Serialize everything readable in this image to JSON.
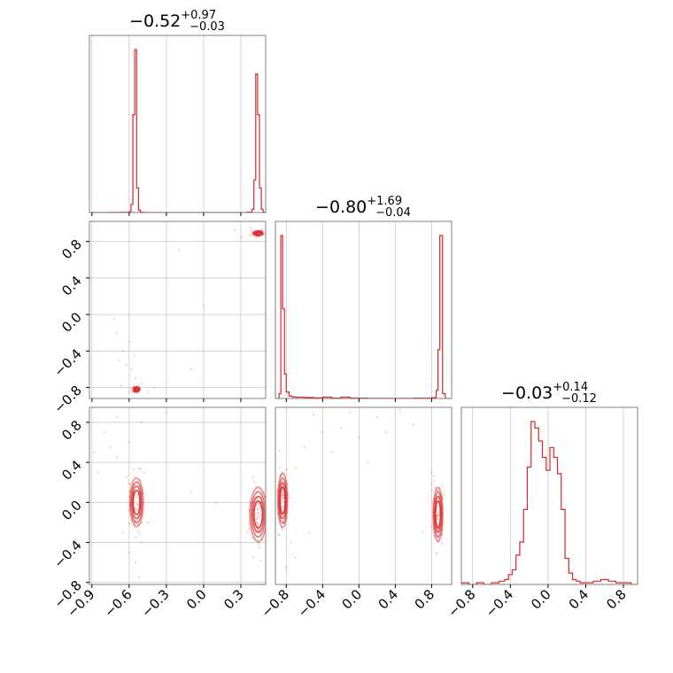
{
  "colors": {
    "accent": "#d62728",
    "frame": "#7f7f7f",
    "grid": "#c8c8c8"
  },
  "chart_data": {
    "type": "corner",
    "grid": true,
    "panels": [
      {
        "id": "hist-0",
        "type": "histogram",
        "title": {
          "median": "−0.52",
          "plus": "+0.97",
          "minus": "−0.03"
        },
        "xlim": [
          -0.92,
          0.5
        ],
        "xticks": [
          "−0.9",
          "−0.6",
          "−0.3",
          "0.0",
          "0.3"
        ],
        "xtick_values": [
          -0.9,
          -0.6,
          -0.3,
          0.0,
          0.3
        ],
        "show_xticklabels": false,
        "bins": {
          "x": [
            -0.92,
            -0.88,
            -0.84,
            -0.8,
            -0.76,
            -0.72,
            -0.68,
            -0.64,
            -0.6,
            -0.585,
            -0.57,
            -0.555,
            -0.54,
            -0.525,
            -0.51,
            -0.49,
            -0.46,
            0.35,
            0.39,
            0.405,
            0.42,
            0.435,
            0.45,
            0.465,
            0.48,
            0.5
          ],
          "y": [
            0.02,
            0.02,
            0.03,
            0.03,
            0.05,
            0.08,
            0.12,
            0.18,
            0.5,
            5,
            60,
            100,
            15,
            1.5,
            0.3,
            0.05,
            0,
            0.2,
            2,
            20,
            85,
            60,
            15,
            2,
            0.2
          ]
        }
      },
      {
        "id": "scatter-1-0",
        "type": "scatter",
        "xlim": [
          -0.92,
          0.5
        ],
        "ylim": [
          -0.92,
          1.02
        ],
        "xticks": [
          "−0.9",
          "−0.6",
          "−0.3",
          "0.0",
          "0.3"
        ],
        "xtick_values": [
          -0.9,
          -0.6,
          -0.3,
          0.0,
          0.3
        ],
        "yticks": [
          "−0.8",
          "−0.4",
          "0.0",
          "0.4",
          "0.8"
        ],
        "ytick_values": [
          -0.8,
          -0.4,
          0.0,
          0.4,
          0.8
        ],
        "show_xticklabels": false,
        "clusters": [
          {
            "cx": -0.54,
            "cy": -0.82,
            "rx": 0.02,
            "ry": 0.02,
            "rings": 3
          },
          {
            "cx": 0.44,
            "cy": 0.89,
            "rx": 0.03,
            "ry": 0.02,
            "rings": 3
          }
        ],
        "points": [
          [
            -0.62,
            -0.55
          ],
          [
            -0.65,
            -0.4
          ],
          [
            -0.7,
            -0.2
          ],
          [
            -0.58,
            -0.6
          ],
          [
            -0.55,
            -0.7
          ],
          [
            -0.5,
            -0.75
          ],
          [
            -0.6,
            -0.3
          ],
          [
            -0.72,
            -0.05
          ],
          [
            -0.2,
            0.7
          ],
          [
            0.0,
            0.1
          ],
          [
            -0.1,
            -0.6
          ],
          [
            0.3,
            0.85
          ],
          [
            0.25,
            0.92
          ],
          [
            -0.4,
            -0.8
          ],
          [
            -0.45,
            -0.85
          ],
          [
            -0.66,
            -0.78
          ],
          [
            -0.6,
            -0.85
          ],
          [
            0.38,
            0.95
          ],
          [
            -0.68,
            -0.5
          ],
          [
            -0.56,
            -0.45
          ]
        ]
      },
      {
        "id": "hist-1",
        "type": "histogram",
        "title": {
          "median": "−0.80",
          "plus": "+1.69",
          "minus": "−0.04"
        },
        "xlim": [
          -0.92,
          1.02
        ],
        "xticks": [
          "−0.8",
          "−0.4",
          "0.0",
          "0.4",
          "0.8"
        ],
        "xtick_values": [
          -0.8,
          -0.4,
          0.0,
          0.4,
          0.8
        ],
        "show_xticklabels": false,
        "bins": {
          "x": [
            -0.92,
            -0.88,
            -0.86,
            -0.84,
            -0.82,
            -0.8,
            -0.77,
            -0.74,
            -0.7,
            -0.6,
            -0.5,
            -0.4,
            -0.3,
            -0.2,
            -0.1,
            0.0,
            0.1,
            0.2,
            0.3,
            0.4,
            0.5,
            0.6,
            0.7,
            0.8,
            0.85,
            0.87,
            0.89,
            0.92,
            0.95,
            1.02
          ],
          "y": [
            0,
            3,
            100,
            55,
            15,
            4,
            1.5,
            1,
            0.8,
            0.6,
            0.4,
            0.8,
            0.3,
            0.8,
            0.3,
            0.2,
            0.1,
            0.1,
            0.1,
            0.1,
            0.1,
            0.2,
            0.2,
            0.5,
            5,
            30,
            100,
            3,
            0
          ]
        }
      },
      {
        "id": "scatter-2-0",
        "type": "scatter",
        "xlim": [
          -0.92,
          0.5
        ],
        "ylim": [
          -0.82,
          0.95
        ],
        "xticks": [
          "−0.9",
          "−0.6",
          "−0.3",
          "0.0",
          "0.3"
        ],
        "xtick_values": [
          -0.9,
          -0.6,
          -0.3,
          0.0,
          0.3
        ],
        "yticks": [
          "−0.8",
          "−0.4",
          "0.0",
          "0.4",
          "0.8"
        ],
        "ytick_values": [
          -0.8,
          -0.4,
          0.0,
          0.4,
          0.8
        ],
        "show_xticklabels": true,
        "clusters": [
          {
            "cx": -0.54,
            "cy": 0.0,
            "rx": 0.04,
            "ry": 0.18,
            "rings": 4
          },
          {
            "cx": 0.44,
            "cy": -0.12,
            "rx": 0.05,
            "ry": 0.2,
            "rings": 4
          }
        ],
        "points": [
          [
            -0.8,
            0.7
          ],
          [
            -0.75,
            0.55
          ],
          [
            -0.7,
            0.45
          ],
          [
            -0.85,
            0.3
          ],
          [
            -0.6,
            0.6
          ],
          [
            -0.5,
            0.8
          ],
          [
            -0.65,
            -0.3
          ],
          [
            -0.6,
            -0.5
          ],
          [
            -0.55,
            -0.6
          ],
          [
            -0.5,
            -0.4
          ],
          [
            0.4,
            0.25
          ],
          [
            0.45,
            -0.45
          ],
          [
            0.4,
            -0.55
          ],
          [
            -0.3,
            0.9
          ],
          [
            -0.1,
            0.1
          ],
          [
            0.1,
            0.0
          ],
          [
            -0.62,
            0.25
          ],
          [
            -0.48,
            0.3
          ],
          [
            -0.7,
            0.85
          ],
          [
            -0.88,
            0.5
          ],
          [
            0.35,
            -0.3
          ],
          [
            0.48,
            0.1
          ],
          [
            -0.52,
            -0.75
          ],
          [
            -0.45,
            -0.2
          ]
        ]
      },
      {
        "id": "scatter-2-1",
        "type": "scatter",
        "xlim": [
          -0.92,
          1.02
        ],
        "ylim": [
          -0.82,
          0.95
        ],
        "xticks": [
          "−0.8",
          "−0.4",
          "0.0",
          "0.4",
          "0.8"
        ],
        "xtick_values": [
          -0.8,
          -0.4,
          0.0,
          0.4,
          0.8
        ],
        "yticks": [],
        "show_xticklabels": true,
        "clusters": [
          {
            "cx": -0.84,
            "cy": 0.02,
            "rx": 0.04,
            "ry": 0.2,
            "rings": 4
          },
          {
            "cx": 0.87,
            "cy": -0.12,
            "rx": 0.04,
            "ry": 0.2,
            "rings": 4
          }
        ],
        "points": [
          [
            -0.6,
            0.55
          ],
          [
            -0.4,
            0.7
          ],
          [
            -0.2,
            0.75
          ],
          [
            0.0,
            0.65
          ],
          [
            0.2,
            0.85
          ],
          [
            0.45,
            0.92
          ],
          [
            -0.7,
            0.35
          ],
          [
            -0.75,
            -0.4
          ],
          [
            -0.7,
            -0.55
          ],
          [
            -0.55,
            -0.3
          ],
          [
            0.8,
            0.3
          ],
          [
            0.85,
            -0.5
          ],
          [
            -0.3,
            0.5
          ],
          [
            0.1,
            0.4
          ],
          [
            -0.8,
            -0.65
          ],
          [
            0.6,
            0.78
          ],
          [
            -0.5,
            0.88
          ],
          [
            0.3,
            0.7
          ],
          [
            -0.1,
            0.9
          ],
          [
            0.7,
            -0.3
          ]
        ]
      },
      {
        "id": "hist-2",
        "type": "histogram",
        "title": {
          "median": "−0.03",
          "plus": "+0.14",
          "minus": "−0.12"
        },
        "xlim": [
          -0.92,
          0.95
        ],
        "xticks": [
          "−0.8",
          "−0.4",
          "0.0",
          "0.4",
          "0.8"
        ],
        "xtick_values": [
          -0.8,
          -0.4,
          0.0,
          0.4,
          0.8
        ],
        "show_xticklabels": true,
        "bins": {
          "x": [
            -0.92,
            -0.84,
            -0.76,
            -0.68,
            -0.6,
            -0.52,
            -0.46,
            -0.42,
            -0.38,
            -0.34,
            -0.3,
            -0.26,
            -0.22,
            -0.18,
            -0.14,
            -0.1,
            -0.06,
            -0.02,
            0.02,
            0.06,
            0.1,
            0.14,
            0.18,
            0.22,
            0.26,
            0.3,
            0.34,
            0.4,
            0.48,
            0.56,
            0.64,
            0.72,
            0.8,
            0.88,
            0.95
          ],
          "y": [
            1,
            0,
            1,
            0,
            1,
            2,
            3,
            6,
            9,
            18,
            26,
            46,
            72,
            100,
            96,
            88,
            78,
            70,
            84,
            78,
            68,
            46,
            16,
            7,
            3,
            2,
            1,
            1,
            2,
            3,
            2,
            1,
            1,
            0
          ]
        }
      }
    ]
  }
}
